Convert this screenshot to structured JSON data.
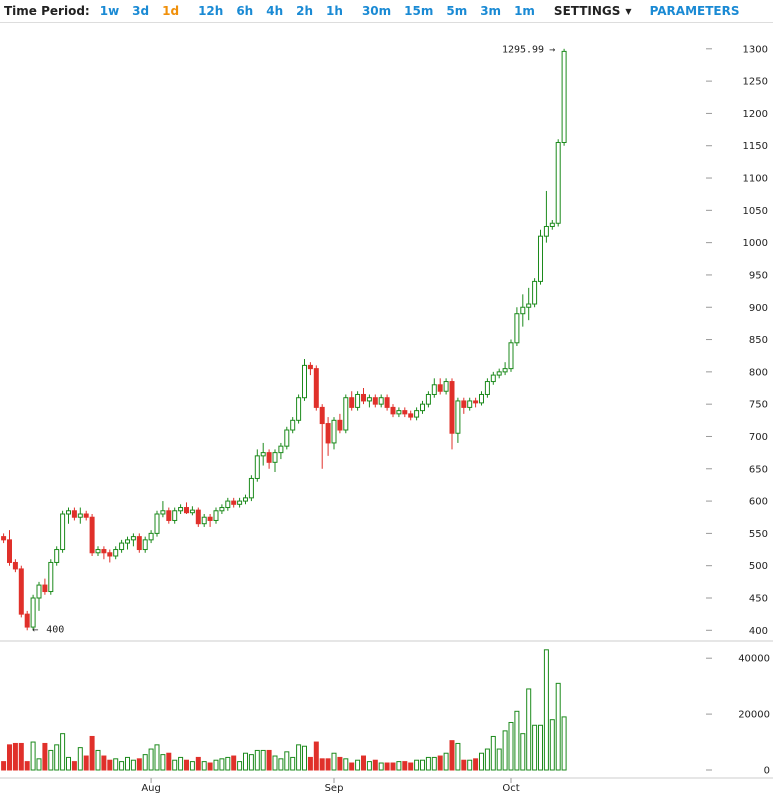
{
  "toolbar": {
    "time_period_label": "Time Period:",
    "periods": [
      "1w",
      "3d",
      "1d",
      "12h",
      "6h",
      "4h",
      "2h",
      "1h",
      "30m",
      "15m",
      "5m",
      "3m",
      "1m"
    ],
    "active_period": "1d",
    "settings_label": "SETTINGS",
    "parameters_label": "PARAMETERS",
    "accent_color": "#1a8ad4",
    "active_color": "#f0900a"
  },
  "chart_data": {
    "type": "candlestick",
    "price_axis": {
      "range": [
        390,
        1320
      ],
      "ticks": [
        400,
        450,
        500,
        550,
        600,
        650,
        700,
        750,
        800,
        850,
        900,
        950,
        1000,
        1050,
        1100,
        1150,
        1200,
        1250,
        1300
      ]
    },
    "volume_axis": {
      "range": [
        0,
        45000
      ],
      "ticks": [
        0,
        20000,
        40000
      ]
    },
    "x_axis": {
      "labels": [
        {
          "label": "Aug",
          "day": 25
        },
        {
          "label": "Sep",
          "day": 56
        },
        {
          "label": "Oct",
          "day": 86
        }
      ]
    },
    "annotations": {
      "high_label": "1295.99",
      "high_arrow": "→",
      "low_label": "400",
      "low_arrow": "←"
    },
    "candle_up_color": "#1c8a1c",
    "candle_down_color": "#e0302a",
    "candles": [
      [
        0,
        545,
        550,
        535,
        540,
        3000
      ],
      [
        1,
        540,
        555,
        500,
        505,
        9000
      ],
      [
        2,
        505,
        510,
        490,
        495,
        9500
      ],
      [
        3,
        495,
        500,
        420,
        425,
        9500
      ],
      [
        4,
        425,
        430,
        400,
        405,
        3000
      ],
      [
        5,
        405,
        455,
        400,
        450,
        10000
      ],
      [
        6,
        450,
        475,
        430,
        470,
        4000
      ],
      [
        7,
        470,
        480,
        455,
        460,
        9500
      ],
      [
        8,
        460,
        510,
        455,
        505,
        7000
      ],
      [
        9,
        505,
        530,
        500,
        525,
        9000
      ],
      [
        10,
        525,
        585,
        520,
        580,
        13000
      ],
      [
        11,
        580,
        590,
        565,
        585,
        4500
      ],
      [
        12,
        585,
        590,
        570,
        575,
        3000
      ],
      [
        13,
        575,
        590,
        565,
        580,
        8000
      ],
      [
        14,
        580,
        585,
        570,
        575,
        5000
      ],
      [
        15,
        575,
        580,
        515,
        520,
        12000
      ],
      [
        16,
        520,
        530,
        515,
        525,
        7000
      ],
      [
        17,
        525,
        530,
        510,
        520,
        5000
      ],
      [
        18,
        520,
        525,
        505,
        515,
        3500
      ],
      [
        19,
        515,
        530,
        510,
        525,
        4000
      ],
      [
        20,
        525,
        540,
        520,
        535,
        3000
      ],
      [
        21,
        535,
        545,
        525,
        540,
        4500
      ],
      [
        22,
        540,
        550,
        530,
        545,
        3500
      ],
      [
        23,
        545,
        550,
        520,
        525,
        4000
      ],
      [
        24,
        525,
        545,
        520,
        540,
        5500
      ],
      [
        25,
        540,
        555,
        535,
        550,
        7500
      ],
      [
        26,
        550,
        585,
        545,
        580,
        9000
      ],
      [
        27,
        580,
        600,
        575,
        585,
        5500
      ],
      [
        28,
        585,
        590,
        565,
        570,
        6000
      ],
      [
        29,
        570,
        590,
        565,
        585,
        3500
      ],
      [
        30,
        585,
        595,
        580,
        590,
        4500
      ],
      [
        31,
        590,
        598,
        580,
        582,
        3500
      ],
      [
        32,
        582,
        592,
        578,
        586,
        3000
      ],
      [
        33,
        586,
        590,
        560,
        565,
        4500
      ],
      [
        34,
        565,
        580,
        560,
        575,
        3000
      ],
      [
        35,
        575,
        580,
        560,
        570,
        2500
      ],
      [
        36,
        570,
        590,
        565,
        585,
        3500
      ],
      [
        37,
        585,
        595,
        580,
        590,
        4000
      ],
      [
        38,
        590,
        605,
        585,
        600,
        4500
      ],
      [
        39,
        600,
        605,
        590,
        595,
        5000
      ],
      [
        40,
        595,
        605,
        590,
        600,
        3000
      ],
      [
        41,
        600,
        610,
        595,
        605,
        6000
      ],
      [
        42,
        605,
        640,
        600,
        635,
        5500
      ],
      [
        43,
        635,
        680,
        630,
        670,
        7000
      ],
      [
        44,
        670,
        690,
        655,
        675,
        7000
      ],
      [
        45,
        675,
        680,
        650,
        660,
        7000
      ],
      [
        46,
        660,
        680,
        645,
        675,
        5000
      ],
      [
        47,
        675,
        690,
        665,
        685,
        4000
      ],
      [
        48,
        685,
        715,
        680,
        710,
        6500
      ],
      [
        49,
        710,
        730,
        705,
        725,
        4500
      ],
      [
        50,
        725,
        765,
        720,
        760,
        9000
      ],
      [
        51,
        760,
        820,
        755,
        810,
        8500
      ],
      [
        52,
        810,
        815,
        795,
        805,
        4500
      ],
      [
        53,
        805,
        810,
        740,
        745,
        10000
      ],
      [
        54,
        745,
        750,
        650,
        720,
        4000
      ],
      [
        55,
        720,
        730,
        670,
        690,
        4000
      ],
      [
        56,
        690,
        730,
        680,
        725,
        6000
      ],
      [
        57,
        725,
        735,
        705,
        710,
        4500
      ],
      [
        58,
        710,
        765,
        705,
        760,
        4000
      ],
      [
        59,
        760,
        770,
        740,
        745,
        2500
      ],
      [
        60,
        745,
        770,
        740,
        765,
        3500
      ],
      [
        61,
        765,
        775,
        750,
        755,
        5000
      ],
      [
        62,
        755,
        765,
        745,
        760,
        3000
      ],
      [
        63,
        760,
        765,
        745,
        750,
        3500
      ],
      [
        64,
        750,
        765,
        745,
        760,
        2500
      ],
      [
        65,
        760,
        765,
        740,
        745,
        2500
      ],
      [
        66,
        745,
        750,
        730,
        735,
        2500
      ],
      [
        67,
        735,
        745,
        730,
        740,
        3000
      ],
      [
        68,
        740,
        745,
        730,
        735,
        3000
      ],
      [
        69,
        735,
        740,
        725,
        730,
        2500
      ],
      [
        70,
        730,
        745,
        725,
        740,
        3500
      ],
      [
        71,
        740,
        755,
        735,
        750,
        3500
      ],
      [
        72,
        750,
        770,
        745,
        765,
        4500
      ],
      [
        73,
        765,
        790,
        760,
        780,
        4500
      ],
      [
        74,
        780,
        790,
        765,
        770,
        5000
      ],
      [
        75,
        770,
        790,
        765,
        785,
        6000
      ],
      [
        76,
        785,
        790,
        680,
        705,
        10500
      ],
      [
        77,
        705,
        760,
        690,
        755,
        9500
      ],
      [
        78,
        755,
        760,
        735,
        745,
        3500
      ],
      [
        79,
        745,
        760,
        740,
        755,
        3500
      ],
      [
        80,
        755,
        760,
        745,
        752,
        4000
      ],
      [
        81,
        752,
        770,
        748,
        765,
        6000
      ],
      [
        82,
        765,
        790,
        760,
        785,
        7500
      ],
      [
        83,
        785,
        800,
        780,
        795,
        12000
      ],
      [
        84,
        795,
        805,
        790,
        800,
        7500
      ],
      [
        85,
        800,
        815,
        795,
        805,
        14000
      ],
      [
        86,
        805,
        850,
        800,
        845,
        17000
      ],
      [
        87,
        845,
        900,
        840,
        890,
        21000
      ],
      [
        88,
        890,
        920,
        870,
        900,
        13000
      ],
      [
        89,
        900,
        930,
        880,
        905,
        29000
      ],
      [
        90,
        905,
        945,
        900,
        940,
        16000
      ],
      [
        91,
        940,
        1020,
        935,
        1010,
        16000
      ],
      [
        92,
        1010,
        1080,
        1000,
        1025,
        43000
      ],
      [
        93,
        1025,
        1035,
        1020,
        1030,
        18000
      ],
      [
        94,
        1030,
        1160,
        1025,
        1155,
        31000
      ],
      [
        95,
        1155,
        1300,
        1150,
        1296,
        19000
      ]
    ]
  }
}
